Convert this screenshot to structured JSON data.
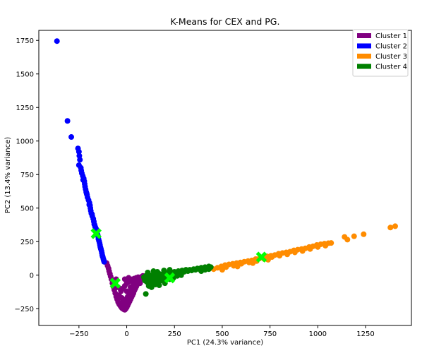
{
  "chart_data": {
    "type": "scatter",
    "title": "K-Means for CEX and PG.",
    "xlabel": "PC1 (24.3% variance)",
    "ylabel": "PC2 (13.4% variance)",
    "xlim": [
      -460,
      1490
    ],
    "ylim": [
      -375,
      1825
    ],
    "x_ticks": [
      -250,
      0,
      250,
      500,
      750,
      1000,
      1250
    ],
    "x_tick_labels": [
      "−250",
      "0",
      "250",
      "500",
      "750",
      "1000",
      "1250"
    ],
    "y_ticks": [
      -250,
      0,
      250,
      500,
      750,
      1000,
      1250,
      1500,
      1750
    ],
    "y_tick_labels": [
      "−250",
      "0",
      "250",
      "500",
      "750",
      "1000",
      "1250",
      "1500",
      "1750"
    ],
    "grid": false,
    "legend_position": "top-right",
    "series": [
      {
        "name": "Cluster 1",
        "color": "#800080",
        "points": [
          [
            -105,
            90
          ],
          [
            -100,
            70
          ],
          [
            -95,
            50
          ],
          [
            -92,
            30
          ],
          [
            -88,
            10
          ],
          [
            -84,
            -10
          ],
          [
            -80,
            -30
          ],
          [
            -75,
            -60
          ],
          [
            -70,
            -85
          ],
          [
            -65,
            -110
          ],
          [
            -60,
            -135
          ],
          [
            -55,
            -160
          ],
          [
            -50,
            -180
          ],
          [
            -45,
            -200
          ],
          [
            -40,
            -215
          ],
          [
            -35,
            -225
          ],
          [
            -30,
            -235
          ],
          [
            -25,
            -245
          ],
          [
            -20,
            -250
          ],
          [
            -15,
            -255
          ],
          [
            -10,
            -258
          ],
          [
            -5,
            -250
          ],
          [
            0,
            -240
          ],
          [
            5,
            -225
          ],
          [
            10,
            -210
          ],
          [
            15,
            -195
          ],
          [
            20,
            -180
          ],
          [
            25,
            -165
          ],
          [
            30,
            -150
          ],
          [
            35,
            -135
          ],
          [
            40,
            -115
          ],
          [
            45,
            -100
          ],
          [
            50,
            -85
          ],
          [
            55,
            -70
          ],
          [
            60,
            -55
          ],
          [
            65,
            -40
          ],
          [
            70,
            -30
          ],
          [
            75,
            -20
          ],
          [
            80,
            -10
          ],
          [
            85,
            -5
          ],
          [
            -40,
            -150
          ],
          [
            -30,
            -120
          ],
          [
            -20,
            -100
          ],
          [
            -10,
            -80
          ],
          [
            0,
            -60
          ],
          [
            10,
            -50
          ],
          [
            20,
            -40
          ],
          [
            30,
            -30
          ],
          [
            40,
            -25
          ],
          [
            50,
            -20
          ],
          [
            60,
            -15
          ],
          [
            -15,
            -200
          ],
          [
            -5,
            -180
          ],
          [
            5,
            -160
          ],
          [
            15,
            -140
          ],
          [
            25,
            -110
          ],
          [
            -25,
            -170
          ],
          [
            -35,
            -100
          ],
          [
            -45,
            -90
          ],
          [
            -60,
            -60
          ],
          [
            -55,
            -30
          ],
          [
            0,
            -120
          ],
          [
            20,
            -90
          ],
          [
            35,
            -70
          ],
          [
            45,
            -45
          ],
          [
            -10,
            -30
          ],
          [
            -5,
            -230
          ],
          [
            -25,
            -205
          ],
          [
            10,
            -20
          ],
          [
            70,
            -60
          ]
        ]
      },
      {
        "name": "Cluster 2",
        "color": "#0000ff",
        "points": [
          [
            -365,
            1745
          ],
          [
            -310,
            1150
          ],
          [
            -290,
            1030
          ],
          [
            -255,
            945
          ],
          [
            -250,
            920
          ],
          [
            -248,
            890
          ],
          [
            -245,
            860
          ],
          [
            -250,
            820
          ],
          [
            -240,
            800
          ],
          [
            -238,
            780
          ],
          [
            -235,
            760
          ],
          [
            -230,
            740
          ],
          [
            -225,
            720
          ],
          [
            -222,
            700
          ],
          [
            -220,
            680
          ],
          [
            -218,
            660
          ],
          [
            -215,
            640
          ],
          [
            -212,
            620
          ],
          [
            -208,
            600
          ],
          [
            -205,
            580
          ],
          [
            -200,
            560
          ],
          [
            -195,
            540
          ],
          [
            -192,
            520
          ],
          [
            -190,
            500
          ],
          [
            -188,
            480
          ],
          [
            -185,
            460
          ],
          [
            -180,
            440
          ],
          [
            -175,
            420
          ],
          [
            -172,
            400
          ],
          [
            -170,
            380
          ],
          [
            -165,
            360
          ],
          [
            -160,
            345
          ],
          [
            -158,
            330
          ],
          [
            -155,
            310
          ],
          [
            -150,
            290
          ],
          [
            -148,
            270
          ],
          [
            -145,
            255
          ],
          [
            -142,
            240
          ],
          [
            -140,
            225
          ],
          [
            -138,
            210
          ],
          [
            -135,
            195
          ],
          [
            -132,
            180
          ],
          [
            -130,
            165
          ],
          [
            -128,
            150
          ],
          [
            -125,
            135
          ],
          [
            -122,
            120
          ],
          [
            -120,
            110
          ],
          [
            -118,
            100
          ],
          [
            -228,
            710
          ],
          [
            -210,
            610
          ],
          [
            -196,
            525
          ],
          [
            -182,
            455
          ],
          [
            -168,
            375
          ],
          [
            -152,
            300
          ],
          [
            -136,
            200
          ],
          [
            -126,
            140
          ]
        ]
      },
      {
        "name": "Cluster 3",
        "color": "#ff8c00",
        "points": [
          [
            455,
            45
          ],
          [
            475,
            55
          ],
          [
            495,
            65
          ],
          [
            515,
            75
          ],
          [
            535,
            80
          ],
          [
            555,
            85
          ],
          [
            575,
            90
          ],
          [
            595,
            95
          ],
          [
            615,
            100
          ],
          [
            635,
            105
          ],
          [
            655,
            110
          ],
          [
            675,
            120
          ],
          [
            695,
            125
          ],
          [
            715,
            130
          ],
          [
            735,
            140
          ],
          [
            755,
            145
          ],
          [
            775,
            150
          ],
          [
            795,
            160
          ],
          [
            815,
            165
          ],
          [
            835,
            170
          ],
          [
            855,
            175
          ],
          [
            875,
            185
          ],
          [
            895,
            190
          ],
          [
            915,
            195
          ],
          [
            935,
            200
          ],
          [
            955,
            210
          ],
          [
            975,
            215
          ],
          [
            995,
            225
          ],
          [
            1015,
            230
          ],
          [
            1035,
            235
          ],
          [
            1055,
            238
          ],
          [
            1070,
            240
          ],
          [
            1140,
            285
          ],
          [
            1155,
            265
          ],
          [
            1190,
            290
          ],
          [
            1240,
            305
          ],
          [
            1380,
            355
          ],
          [
            1405,
            365
          ],
          [
            520,
            60
          ],
          [
            560,
            70
          ],
          [
            600,
            85
          ],
          [
            640,
            95
          ],
          [
            680,
            105
          ],
          [
            720,
            120
          ],
          [
            760,
            135
          ],
          [
            800,
            145
          ],
          [
            840,
            155
          ],
          [
            880,
            170
          ],
          [
            920,
            180
          ],
          [
            960,
            195
          ],
          [
            1000,
            210
          ],
          [
            1040,
            220
          ],
          [
            500,
            40
          ],
          [
            580,
            65
          ],
          [
            660,
            90
          ],
          [
            740,
            115
          ]
        ]
      },
      {
        "name": "Cluster 4",
        "color": "#008000",
        "points": [
          [
            90,
            -15
          ],
          [
            100,
            -5
          ],
          [
            110,
            -20
          ],
          [
            120,
            0
          ],
          [
            130,
            -10
          ],
          [
            140,
            5
          ],
          [
            150,
            -15
          ],
          [
            160,
            0
          ],
          [
            170,
            10
          ],
          [
            180,
            -5
          ],
          [
            190,
            10
          ],
          [
            200,
            0
          ],
          [
            210,
            15
          ],
          [
            220,
            5
          ],
          [
            230,
            20
          ],
          [
            240,
            10
          ],
          [
            250,
            25
          ],
          [
            260,
            15
          ],
          [
            270,
            30
          ],
          [
            280,
            20
          ],
          [
            290,
            35
          ],
          [
            300,
            25
          ],
          [
            310,
            40
          ],
          [
            320,
            30
          ],
          [
            330,
            40
          ],
          [
            340,
            35
          ],
          [
            350,
            45
          ],
          [
            360,
            40
          ],
          [
            370,
            50
          ],
          [
            380,
            45
          ],
          [
            390,
            55
          ],
          [
            400,
            50
          ],
          [
            410,
            60
          ],
          [
            420,
            55
          ],
          [
            430,
            65
          ],
          [
            440,
            60
          ],
          [
            95,
            -40
          ],
          [
            105,
            -50
          ],
          [
            115,
            -45
          ],
          [
            125,
            -60
          ],
          [
            135,
            -40
          ],
          [
            145,
            -55
          ],
          [
            155,
            -35
          ],
          [
            165,
            -50
          ],
          [
            175,
            -30
          ],
          [
            185,
            -40
          ],
          [
            195,
            -25
          ],
          [
            205,
            -35
          ],
          [
            215,
            -20
          ],
          [
            225,
            -30
          ],
          [
            235,
            -10
          ],
          [
            245,
            -20
          ],
          [
            255,
            0
          ],
          [
            265,
            -5
          ],
          [
            275,
            5
          ],
          [
            285,
            0
          ],
          [
            100,
            -140
          ],
          [
            115,
            -80
          ],
          [
            130,
            -90
          ],
          [
            150,
            -70
          ],
          [
            170,
            -75
          ],
          [
            200,
            -60
          ],
          [
            110,
            20
          ],
          [
            140,
            30
          ],
          [
            160,
            25
          ],
          [
            195,
            35
          ],
          [
            225,
            40
          ],
          [
            390,
            30
          ],
          [
            410,
            40
          ],
          [
            430,
            45
          ]
        ]
      }
    ],
    "centroids": {
      "color": "#00ff00",
      "marker": "X",
      "points": [
        [
          -160,
          310
        ],
        [
          -60,
          -60
        ],
        [
          225,
          -20
        ],
        [
          705,
          135
        ]
      ]
    }
  }
}
